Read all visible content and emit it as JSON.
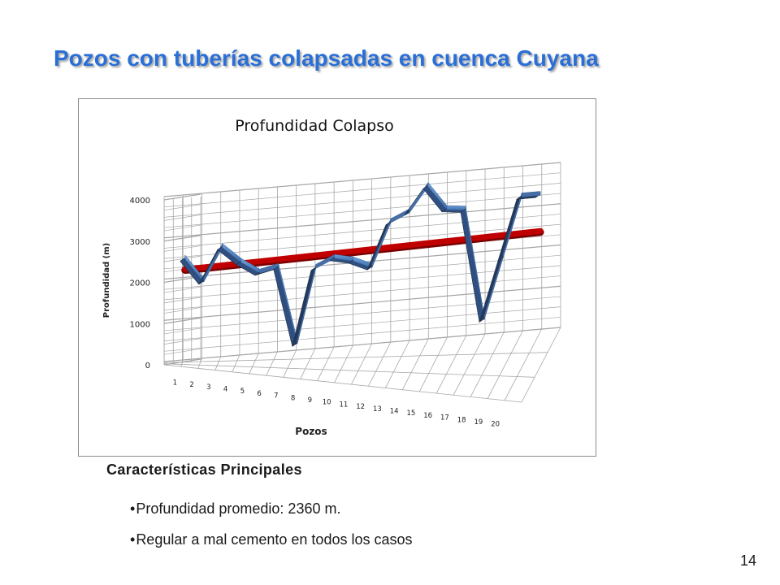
{
  "slide": {
    "title": "Pozos con tuberías colapsadas en cuenca Cuyana",
    "page_number": "14"
  },
  "features": {
    "heading": "Características Principales",
    "items": [
      "Profundidad promedio: 2360 m.",
      "Regular a mal cemento en todos los casos"
    ]
  },
  "chart_data": {
    "type": "line",
    "style": "3d",
    "title": "Profundidad Colapso",
    "xlabel": "Pozos",
    "ylabel": "Profundidad (m)",
    "categories": [
      "1",
      "2",
      "3",
      "4",
      "5",
      "6",
      "7",
      "8",
      "9",
      "10",
      "11",
      "12",
      "13",
      "14",
      "15",
      "16",
      "17",
      "18",
      "19",
      "20"
    ],
    "ylim": [
      0,
      4000
    ],
    "yticks": [
      "0",
      "1000",
      "2000",
      "3000",
      "4000"
    ],
    "grid": true,
    "series": [
      {
        "values": [
          2600,
          2000,
          2800,
          2400,
          2100,
          2200,
          300,
          2100,
          2300,
          2200,
          2000,
          3050,
          3250,
          3850,
          3250,
          3200,
          500,
          1950,
          3400,
          3400
        ],
        "color": "#4f81bd"
      },
      {
        "values": [
          2300,
          2300,
          2310,
          2320,
          2330,
          2340,
          2350,
          2360,
          2370,
          2380,
          2390,
          2400,
          2410,
          2420,
          2430,
          2440,
          2450,
          2460,
          2470,
          2480
        ],
        "color": "#c00000"
      }
    ]
  }
}
